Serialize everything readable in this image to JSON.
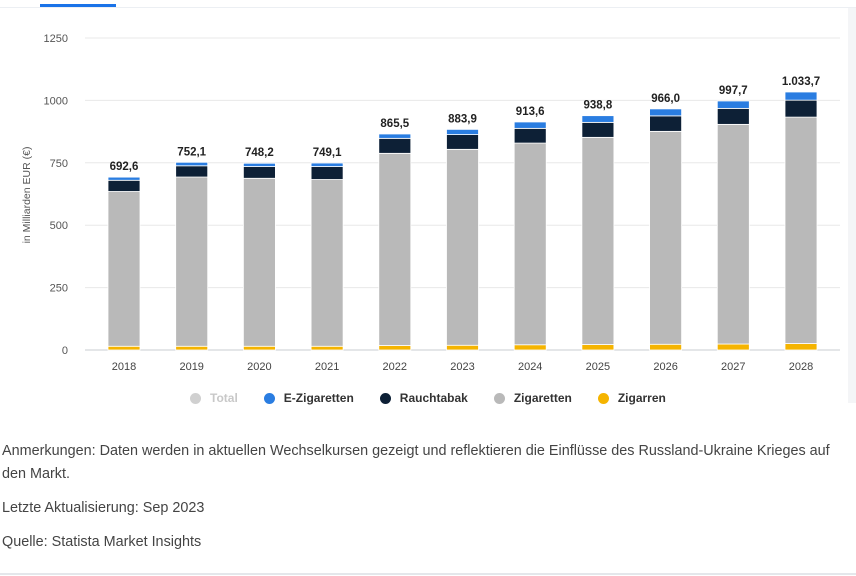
{
  "chart_data": {
    "type": "bar",
    "stacked": true,
    "ylabel": "in Milliarden EUR (€)",
    "ylim": [
      0,
      1250
    ],
    "yticks": [
      0,
      250,
      500,
      750,
      1000,
      1250
    ],
    "ytick_labels": [
      "0",
      "250",
      "500",
      "750",
      "1000",
      "1250"
    ],
    "categories": [
      "2018",
      "2019",
      "2020",
      "2021",
      "2022",
      "2023",
      "2024",
      "2025",
      "2026",
      "2027",
      "2028"
    ],
    "totals": [
      "692,6",
      "752,1",
      "748,2",
      "749,1",
      "865,5",
      "883,9",
      "913,6",
      "938,8",
      "966,0",
      "997,7",
      "1.033,7"
    ],
    "series": [
      {
        "name": "Zigarren",
        "color": "#f5b400",
        "values": [
          15,
          15,
          15,
          15,
          18,
          19,
          21,
          22,
          23,
          24,
          26
        ]
      },
      {
        "name": "Zigaretten",
        "color": "#b9b9b9",
        "values": [
          620,
          678,
          673,
          668,
          770,
          785,
          808,
          830,
          853,
          880,
          907
        ]
      },
      {
        "name": "Rauchtabak",
        "color": "#0d2036",
        "values": [
          45,
          45,
          47,
          52,
          60,
          59,
          59,
          60,
          62,
          64,
          68
        ]
      },
      {
        "name": "E-Zigaretten",
        "color": "#2a7de1",
        "values": [
          12.6,
          14.1,
          13.2,
          14.1,
          17.5,
          20.9,
          25.6,
          26.8,
          28,
          29.7,
          32.7
        ]
      }
    ],
    "legend": [
      {
        "name": "Total",
        "color": "#d0d0d0",
        "muted": true
      },
      {
        "name": "E-Zigaretten",
        "color": "#2a7de1",
        "muted": false
      },
      {
        "name": "Rauchtabak",
        "color": "#0d2036",
        "muted": false
      },
      {
        "name": "Zigaretten",
        "color": "#b9b9b9",
        "muted": false
      },
      {
        "name": "Zigarren",
        "color": "#f5b400",
        "muted": false
      }
    ],
    "legend_position": "bottom-center",
    "grid": true
  },
  "notes": {
    "anmerkungen": "Anmerkungen: Daten werden in aktuellen Wechselkursen gezeigt und reflektieren die Einflüsse des Russland-Ukraine Krieges auf den Markt.",
    "update": "Letzte Aktualisierung: Sep 2023",
    "source": "Quelle: Statista Market Insights"
  }
}
